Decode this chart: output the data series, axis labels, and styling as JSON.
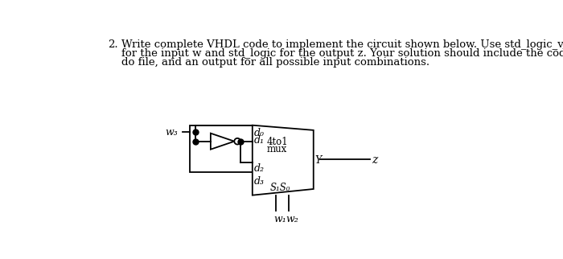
{
  "bg_color": "#ffffff",
  "text_color": "#000000",
  "figsize": [
    7.0,
    3.22
  ],
  "dpi": 100,
  "title_num": "2.",
  "title_line1": "Write complete VHDL code to implement the circuit shown below. Use std_logic_vector",
  "title_line2": "for the input w and std_logic for the output z. Your solution should include the code, your",
  "title_line3": "do file, and an output for all possible input combinations.",
  "circuit": {
    "w3": "w₃",
    "d0": "d₀",
    "d1": "d₁",
    "d2": "d₂",
    "d3": "d₃",
    "label_4to1": "4to1",
    "label_mux": "mux",
    "sel": "S₁S₀",
    "Y": "Y",
    "z": "z",
    "w1": "w₁",
    "w2": "w₂"
  }
}
